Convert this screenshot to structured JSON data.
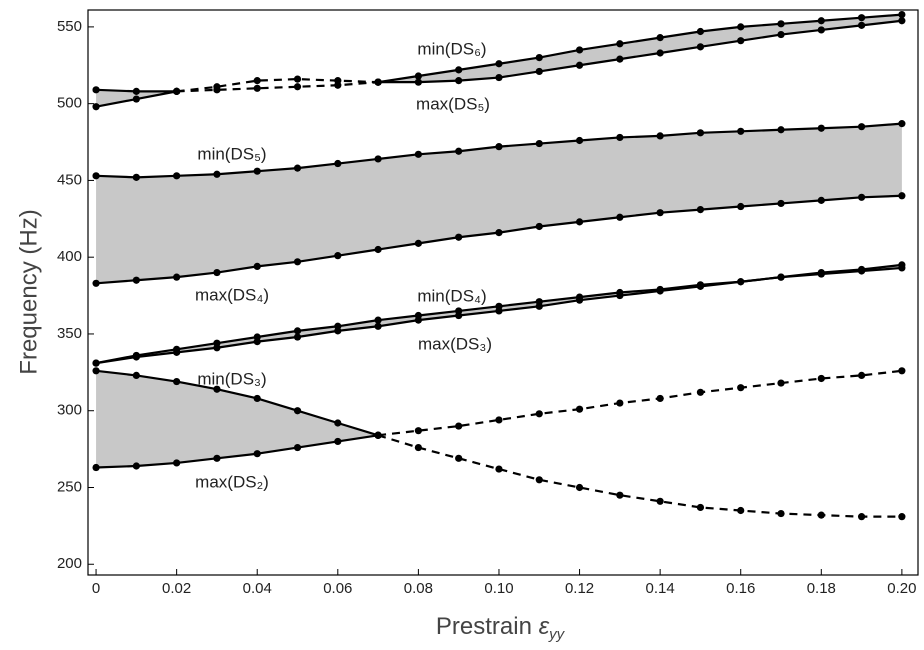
{
  "chart_data": {
    "type": "line",
    "ylabel": "Frequency (Hz)",
    "xlabel": {
      "text": "Prestrain ",
      "symbol": "ε",
      "sub": "yy"
    },
    "x": [
      0,
      0.01,
      0.02,
      0.03,
      0.04,
      0.05,
      0.06,
      0.07,
      0.08,
      0.09,
      0.1,
      0.11,
      0.12,
      0.13,
      0.14,
      0.15,
      0.16,
      0.17,
      0.18,
      0.19,
      0.2
    ],
    "xlim": [
      -0.002,
      0.204
    ],
    "ylim": [
      193,
      561
    ],
    "xticks": [
      0,
      0.02,
      0.04,
      0.06,
      0.08,
      {
        "value": 0.1,
        "label": "0.10"
      },
      0.12,
      0.14,
      0.16,
      0.18,
      {
        "value": 0.2,
        "label": "0.20"
      }
    ],
    "yticks": [
      200,
      250,
      300,
      350,
      400,
      450,
      500,
      550
    ],
    "color": "#000000",
    "band_color": "#c8c8c8",
    "series": [
      {
        "dashed": false,
        "values": [
          263,
          264,
          266,
          269,
          272,
          276,
          280,
          284,
          null,
          null,
          null,
          null,
          null,
          null,
          null,
          null,
          null,
          null,
          null,
          null,
          null
        ]
      },
      {
        "dashed": true,
        "values": [
          null,
          null,
          null,
          null,
          null,
          null,
          null,
          284,
          287,
          290,
          294,
          298,
          301,
          305,
          308,
          312,
          315,
          318,
          321,
          323,
          326
        ]
      },
      {
        "dashed": false,
        "values": [
          326,
          323,
          319,
          314,
          308,
          300,
          292,
          284,
          null,
          null,
          null,
          null,
          null,
          null,
          null,
          null,
          null,
          null,
          null,
          null,
          null
        ]
      },
      {
        "dashed": true,
        "values": [
          null,
          null,
          null,
          null,
          null,
          null,
          null,
          284,
          276,
          269,
          262,
          255,
          250,
          245,
          241,
          237,
          235,
          233,
          232,
          231,
          231
        ]
      },
      {
        "dashed": false,
        "values": [
          331,
          335,
          338,
          341,
          345,
          348,
          352,
          355,
          359,
          362,
          365,
          368,
          372,
          375,
          378,
          381,
          384,
          387,
          390,
          392,
          395
        ]
      },
      {
        "dashed": false,
        "values": [
          331,
          336,
          340,
          344,
          348,
          352,
          355,
          359,
          362,
          365,
          368,
          371,
          374,
          377,
          379,
          382,
          384,
          387,
          389,
          391,
          393
        ]
      },
      {
        "dashed": false,
        "values": [
          383,
          385,
          387,
          390,
          394,
          397,
          401,
          405,
          409,
          413,
          416,
          420,
          423,
          426,
          429,
          431,
          433,
          435,
          437,
          439,
          440
        ]
      },
      {
        "dashed": false,
        "values": [
          453,
          452,
          453,
          454,
          456,
          458,
          461,
          464,
          467,
          469,
          472,
          474,
          476,
          478,
          479,
          481,
          482,
          483,
          484,
          485,
          487
        ]
      },
      {
        "dashed": false,
        "values": [
          498,
          503,
          508,
          null,
          null,
          null,
          null,
          null,
          null,
          null,
          null,
          null,
          null,
          null,
          null,
          null,
          null,
          null,
          null,
          null,
          null
        ]
      },
      {
        "dashed": false,
        "values": [
          509,
          508,
          508,
          null,
          null,
          null,
          null,
          null,
          null,
          null,
          null,
          null,
          null,
          null,
          null,
          null,
          null,
          null,
          null,
          null,
          null
        ]
      },
      {
        "dashed": true,
        "values": [
          null,
          null,
          508,
          511,
          515,
          516,
          515,
          514,
          null,
          null,
          null,
          null,
          null,
          null,
          null,
          null,
          null,
          null,
          null,
          null,
          null
        ]
      },
      {
        "dashed": true,
        "values": [
          null,
          null,
          508,
          509,
          510,
          511,
          512,
          514,
          null,
          null,
          null,
          null,
          null,
          null,
          null,
          null,
          null,
          null,
          null,
          null,
          null
        ]
      },
      {
        "dashed": false,
        "values": [
          null,
          null,
          null,
          null,
          null,
          null,
          null,
          514,
          518,
          522,
          526,
          530,
          535,
          539,
          543,
          547,
          550,
          552,
          554,
          556,
          558
        ]
      },
      {
        "dashed": false,
        "values": [
          null,
          null,
          null,
          null,
          null,
          null,
          null,
          514,
          514,
          515,
          517,
          521,
          525,
          529,
          533,
          537,
          541,
          545,
          548,
          551,
          554
        ]
      }
    ],
    "annotations": [
      "min(DS₆)",
      "max(DS₅)",
      "min(DS₅)",
      "max(DS₄)",
      "min(DS₄)",
      "max(DS₃)",
      "min(DS₃)",
      "max(DS₂)"
    ]
  }
}
